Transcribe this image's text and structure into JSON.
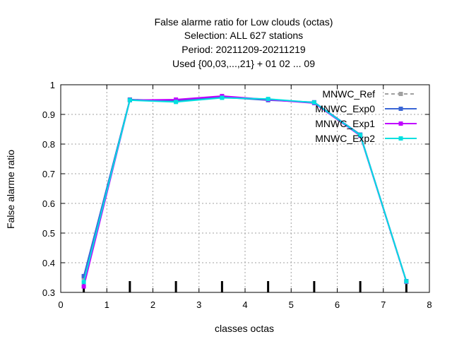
{
  "chart_data": {
    "type": "line",
    "title_lines": [
      "False alarme ratio  for Low clouds (octas)",
      "Selection: ALL    627 stations",
      "Period: 20211209-20211219",
      "Used {00,03,...,21} + 01 02 ... 09"
    ],
    "xlabel": "classes octas",
    "ylabel": "False alarme ratio",
    "xlim": [
      0,
      8
    ],
    "ylim": [
      0.3,
      1
    ],
    "xticks": [
      "0",
      "1",
      "2",
      "3",
      "4",
      "5",
      "6",
      "7",
      "8"
    ],
    "yticks": [
      "0.3",
      "0.4",
      "0.5",
      "0.6",
      "0.7",
      "0.8",
      "0.9",
      "1"
    ],
    "grid": true,
    "legend_position": "top-right",
    "x": [
      0.5,
      1.5,
      2.5,
      3.5,
      4.5,
      5.5,
      6.5,
      7.5
    ],
    "series": [
      {
        "name": "MNWC_Ref",
        "color": "#a0a0a0",
        "dashed": true,
        "values": [
          0.35,
          0.95,
          0.945,
          0.96,
          0.95,
          0.94,
          0.83,
          0.335
        ]
      },
      {
        "name": "MNWC_Exp0",
        "color": "#3a66d6",
        "dashed": false,
        "values": [
          0.355,
          0.95,
          0.946,
          0.958,
          0.948,
          0.941,
          0.832,
          0.338
        ]
      },
      {
        "name": "MNWC_Exp1",
        "color": "#c000ff",
        "dashed": false,
        "values": [
          0.32,
          0.948,
          0.95,
          0.962,
          0.95,
          0.938,
          0.828,
          0.336
        ]
      },
      {
        "name": "MNWC_Exp2",
        "color": "#00e0e0",
        "dashed": false,
        "values": [
          0.335,
          0.948,
          0.942,
          0.956,
          0.952,
          0.94,
          0.83,
          0.337
        ]
      }
    ]
  }
}
